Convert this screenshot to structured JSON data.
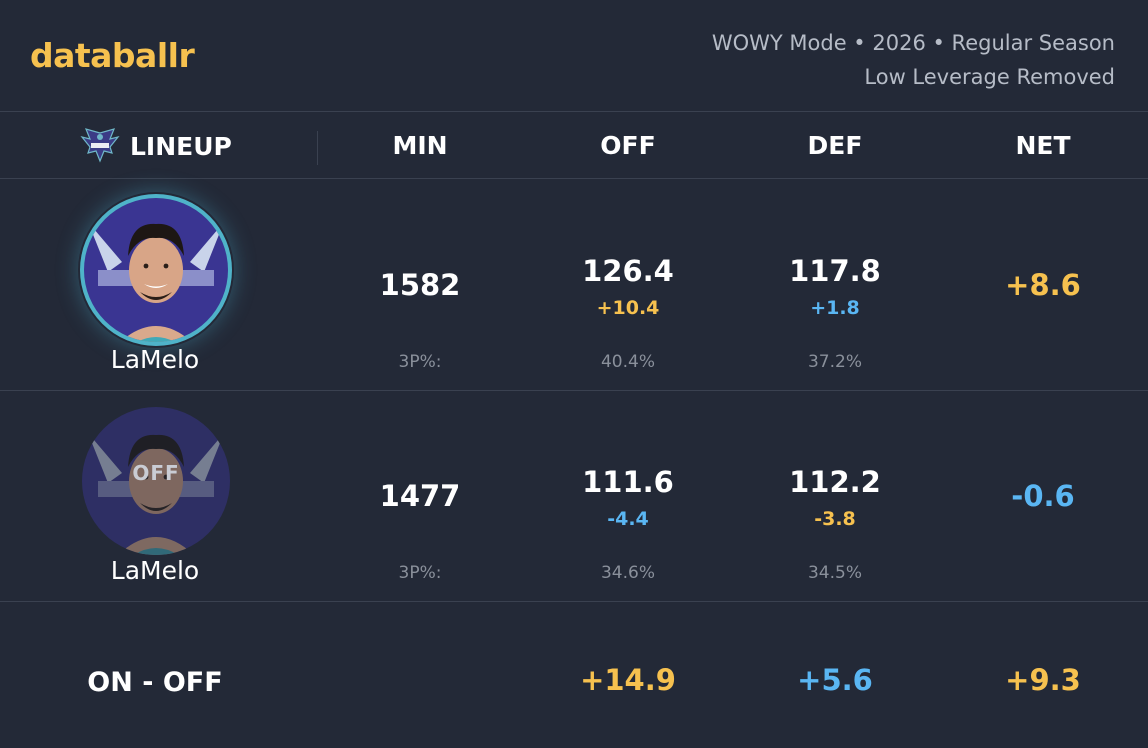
{
  "brand": {
    "logo_text": "databallr",
    "logo_color": "#f6c14f"
  },
  "meta": {
    "line1": "WOWY Mode • 2026 • Regular Season",
    "line2": "Low Leverage Removed"
  },
  "columns": {
    "team_icon": "hornets-logo-icon",
    "lineup": "LINEUP",
    "min": "MIN",
    "off": "OFF",
    "def": "DEF",
    "net": "NET"
  },
  "rows": [
    {
      "state": "on",
      "player": "LaMelo",
      "avatar": "player-photo-icon",
      "min": "1582",
      "off": "126.4",
      "off_delta": "+10.4",
      "def": "117.8",
      "def_delta": "+1.8",
      "net": "+8.6",
      "sub_label": "3P%:",
      "off_sub": "40.4%",
      "def_sub": "37.2%"
    },
    {
      "state": "off",
      "off_badge": "OFF",
      "player": "LaMelo",
      "avatar": "player-photo-icon",
      "min": "1477",
      "off": "111.6",
      "off_delta": "-4.4",
      "def": "112.2",
      "def_delta": "-3.8",
      "net": "-0.6",
      "sub_label": "3P%:",
      "off_sub": "34.6%",
      "def_sub": "34.5%"
    }
  ],
  "summary": {
    "label": "ON - OFF",
    "off": "+14.9",
    "def": "+5.6",
    "net": "+9.3"
  },
  "colors": {
    "positive": "#f6c14f",
    "negative": "#5ab6f3",
    "background": "#232937"
  }
}
